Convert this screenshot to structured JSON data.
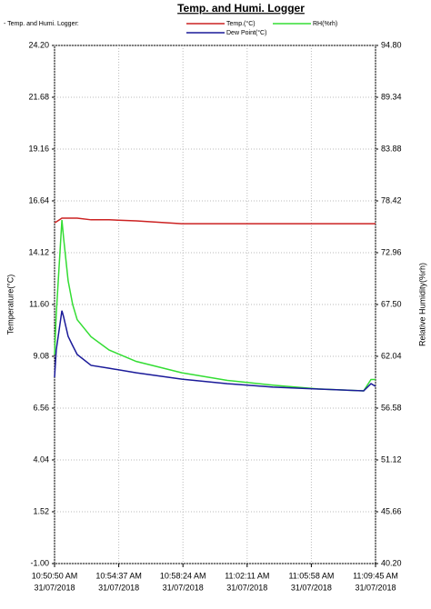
{
  "chart_data": {
    "type": "line",
    "title": "Temp. and Humi. Logger",
    "subtitle": "- Temp. and Humi. Logger:",
    "y_label": "Temperature(°C)",
    "y2_label": "Relative Humidity(%rh)",
    "grid": true,
    "x": [
      39050,
      39056,
      39076,
      39082,
      39098,
      39114,
      39130,
      39179,
      39243,
      39339,
      39500,
      39661,
      39822,
      39982,
      40143,
      40169,
      40185
    ],
    "xlim": [
      39050,
      40185
    ],
    "xticks": [
      {
        "value": 39050,
        "label": "10:50:50 AM"
      },
      {
        "value": 39277,
        "label": "10:54:37 AM"
      },
      {
        "value": 39504,
        "label": "10:58:24 AM"
      },
      {
        "value": 39731,
        "label": "11:02:11 AM"
      },
      {
        "value": 39958,
        "label": "11:05:58 AM"
      },
      {
        "value": 40185,
        "label": "11:09:45 AM"
      }
    ],
    "x_dates": [
      "31/07/2018",
      "31/07/2018",
      "31/07/2018",
      "31/07/2018",
      "31/07/2018",
      "31/07/2018"
    ],
    "ylim": [
      -1.0,
      24.2
    ],
    "yticks": [
      {
        "value": 24.2,
        "label": "24.20"
      },
      21.68,
      19.16,
      16.64,
      14.12,
      {
        "value": 11.6,
        "label": "11.60"
      },
      9.08,
      6.56,
      4.04,
      1.52,
      {
        "value": -1.0,
        "label": "-1.00"
      }
    ],
    "y2lim": [
      40.2,
      94.8
    ],
    "y2ticks": [
      {
        "value": 94.8,
        "label": "94.80"
      },
      89.34,
      83.88,
      78.42,
      72.96,
      {
        "value": 67.5,
        "label": "67.50"
      },
      62.04,
      56.58,
      51.12,
      45.66,
      {
        "value": 40.2,
        "label": "40.20"
      }
    ],
    "series": [
      {
        "name": "Temp.(°C)",
        "color": "#cc2222",
        "values": [
          15.58,
          15.62,
          15.8,
          15.8,
          15.8,
          15.8,
          15.8,
          15.72,
          15.72,
          15.67,
          15.53,
          15.53,
          15.53,
          15.53,
          15.53,
          15.53,
          15.53
        ]
      },
      {
        "name": "RH(%rh)",
        "color": "#33dd33",
        "axis": "y2",
        "values": [
          62.2,
          66.5,
          76.4,
          74.5,
          70.0,
          67.5,
          65.9,
          64.1,
          62.7,
          61.5,
          60.3,
          59.5,
          59.0,
          58.6,
          58.4,
          59.6,
          59.6
        ]
      },
      {
        "name": "Dew Point(°C)",
        "color": "#1a1a99",
        "values": [
          8.06,
          9.39,
          11.3,
          11.0,
          10.05,
          9.6,
          9.17,
          8.64,
          8.5,
          8.28,
          7.97,
          7.75,
          7.58,
          7.49,
          7.4,
          7.75,
          7.62
        ]
      }
    ]
  }
}
